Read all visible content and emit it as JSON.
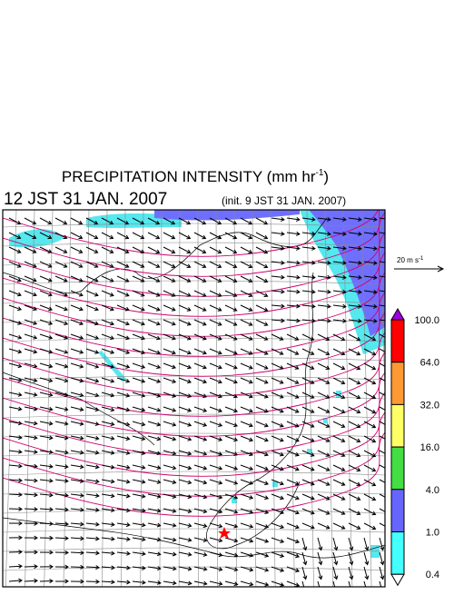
{
  "header": {
    "title": "PRECIPITATION INTENSITY (mm hr",
    "title_exponent": "-1",
    "title_end": ")",
    "valid_time": "12 JST 31 JAN. 2007",
    "init_time": "(init. 9 JST 31 JAN. 2007)"
  },
  "wind_scale": {
    "label": "20 m s",
    "exponent": "-1"
  },
  "colorbar": {
    "ticks": [
      {
        "value": 100,
        "label": "100.0"
      },
      {
        "value": 64,
        "label": "64.0"
      },
      {
        "value": 32,
        "label": "32.0"
      },
      {
        "value": 16,
        "label": "16.0"
      },
      {
        "value": 4,
        "label": "4.0"
      },
      {
        "value": 1,
        "label": "1.0"
      },
      {
        "value": 0.4,
        "label": "0.4"
      }
    ],
    "over_color": "#a000e0",
    "colors": [
      "#ff0000",
      "#ff9933",
      "#ffff66",
      "#44dd44",
      "#6666ff",
      "#44ffff"
    ],
    "under_color": "#ffffff"
  }
}
